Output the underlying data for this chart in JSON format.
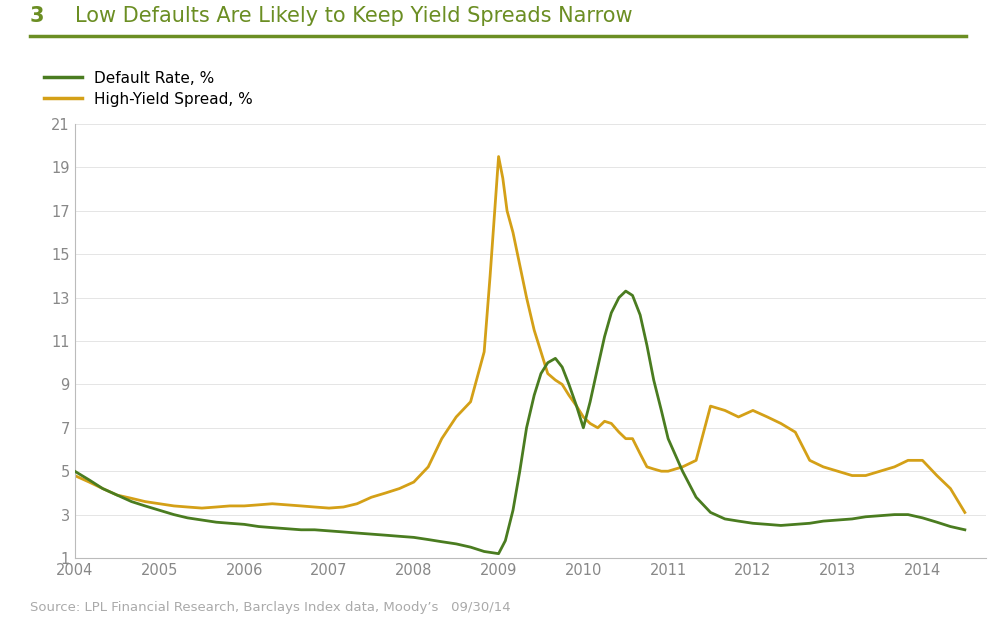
{
  "title_number": "3",
  "title_text": "Low Defaults Are Likely to Keep Yield Spreads Narrow",
  "title_color": "#6b8e23",
  "source_text": "Source: LPL Financial Research, Barclays Index data, Moody’s   09/30/14",
  "line1_label": "Default Rate, %",
  "line1_color": "#4a7c20",
  "line2_label": "High-Yield Spread, %",
  "line2_color": "#d4a017",
  "ylim": [
    1,
    21
  ],
  "yticks": [
    1,
    3,
    5,
    7,
    9,
    11,
    13,
    15,
    17,
    19,
    21
  ],
  "background_color": "#ffffff",
  "default_rate_x": [
    2004.0,
    2004.17,
    2004.33,
    2004.5,
    2004.67,
    2004.83,
    2005.0,
    2005.17,
    2005.33,
    2005.5,
    2005.67,
    2005.83,
    2006.0,
    2006.17,
    2006.33,
    2006.5,
    2006.67,
    2006.83,
    2007.0,
    2007.17,
    2007.33,
    2007.5,
    2007.67,
    2007.83,
    2008.0,
    2008.17,
    2008.33,
    2008.5,
    2008.67,
    2008.83,
    2009.0,
    2009.08,
    2009.17,
    2009.25,
    2009.33,
    2009.42,
    2009.5,
    2009.58,
    2009.67,
    2009.75,
    2009.83,
    2009.92,
    2010.0,
    2010.08,
    2010.17,
    2010.25,
    2010.33,
    2010.42,
    2010.5,
    2010.58,
    2010.67,
    2010.75,
    2010.83,
    2010.92,
    2011.0,
    2011.17,
    2011.33,
    2011.5,
    2011.67,
    2011.83,
    2012.0,
    2012.17,
    2012.33,
    2012.5,
    2012.67,
    2012.83,
    2013.0,
    2013.17,
    2013.33,
    2013.5,
    2013.67,
    2013.83,
    2014.0,
    2014.17,
    2014.33,
    2014.5
  ],
  "default_rate_y": [
    5.0,
    4.6,
    4.2,
    3.9,
    3.6,
    3.4,
    3.2,
    3.0,
    2.85,
    2.75,
    2.65,
    2.6,
    2.55,
    2.45,
    2.4,
    2.35,
    2.3,
    2.3,
    2.25,
    2.2,
    2.15,
    2.1,
    2.05,
    2.0,
    1.95,
    1.85,
    1.75,
    1.65,
    1.5,
    1.3,
    1.2,
    1.8,
    3.2,
    5.0,
    7.0,
    8.5,
    9.5,
    10.0,
    10.2,
    9.8,
    9.0,
    8.0,
    7.0,
    8.2,
    9.8,
    11.2,
    12.3,
    13.0,
    13.3,
    13.1,
    12.2,
    10.8,
    9.2,
    7.8,
    6.5,
    5.0,
    3.8,
    3.1,
    2.8,
    2.7,
    2.6,
    2.55,
    2.5,
    2.55,
    2.6,
    2.7,
    2.75,
    2.8,
    2.9,
    2.95,
    3.0,
    3.0,
    2.85,
    2.65,
    2.45,
    2.3
  ],
  "high_yield_spread_x": [
    2004.0,
    2004.17,
    2004.33,
    2004.5,
    2004.67,
    2004.83,
    2005.0,
    2005.17,
    2005.33,
    2005.5,
    2005.67,
    2005.83,
    2006.0,
    2006.17,
    2006.33,
    2006.5,
    2006.67,
    2006.83,
    2007.0,
    2007.17,
    2007.33,
    2007.5,
    2007.67,
    2007.83,
    2008.0,
    2008.17,
    2008.33,
    2008.5,
    2008.67,
    2008.83,
    2008.9,
    2009.0,
    2009.05,
    2009.1,
    2009.17,
    2009.25,
    2009.33,
    2009.42,
    2009.5,
    2009.58,
    2009.67,
    2009.75,
    2009.83,
    2009.92,
    2010.0,
    2010.08,
    2010.17,
    2010.25,
    2010.33,
    2010.42,
    2010.5,
    2010.58,
    2010.67,
    2010.75,
    2010.83,
    2010.92,
    2011.0,
    2011.17,
    2011.33,
    2011.5,
    2011.67,
    2011.83,
    2012.0,
    2012.17,
    2012.33,
    2012.5,
    2012.67,
    2012.83,
    2013.0,
    2013.17,
    2013.33,
    2013.5,
    2013.67,
    2013.83,
    2014.0,
    2014.17,
    2014.33,
    2014.5
  ],
  "high_yield_spread_y": [
    4.8,
    4.5,
    4.2,
    3.9,
    3.75,
    3.6,
    3.5,
    3.4,
    3.35,
    3.3,
    3.35,
    3.4,
    3.4,
    3.45,
    3.5,
    3.45,
    3.4,
    3.35,
    3.3,
    3.35,
    3.5,
    3.8,
    4.0,
    4.2,
    4.5,
    5.2,
    6.5,
    7.5,
    8.2,
    10.5,
    14.0,
    19.5,
    18.5,
    17.0,
    16.0,
    14.5,
    13.0,
    11.5,
    10.5,
    9.5,
    9.2,
    9.0,
    8.5,
    8.0,
    7.5,
    7.2,
    7.0,
    7.3,
    7.2,
    6.8,
    6.5,
    6.5,
    5.8,
    5.2,
    5.1,
    5.0,
    5.0,
    5.2,
    5.5,
    8.0,
    7.8,
    7.5,
    7.8,
    7.5,
    7.2,
    6.8,
    5.5,
    5.2,
    5.0,
    4.8,
    4.8,
    5.0,
    5.2,
    5.5,
    5.5,
    4.8,
    4.2,
    3.1
  ]
}
